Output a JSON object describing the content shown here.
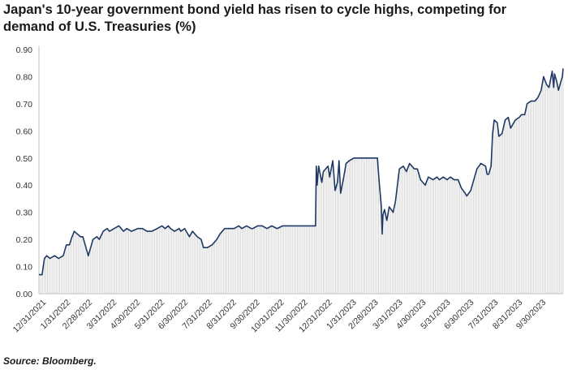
{
  "title": "Japan's 10-year government bond yield has risen to cycle highs, competing for demand of U.S. Treasuries (%)",
  "source": "Source: Bloomberg.",
  "colors": {
    "line": "#1f3864",
    "fill": "#d6d6d6",
    "axis": "#bfbfbf"
  },
  "chart_data": {
    "type": "area",
    "title": "Japan's 10-year government bond yield has risen to cycle highs, competing for demand of U.S. Treasuries (%)",
    "xlabel": "",
    "ylabel": "",
    "ylim": [
      0,
      0.9
    ],
    "grid": false,
    "y_ticks": [
      "0.00",
      "0.10",
      "0.20",
      "0.30",
      "0.40",
      "0.50",
      "0.60",
      "0.70",
      "0.80",
      "0.90"
    ],
    "x_ticks": [
      "12/31/2021",
      "1/31/2022",
      "2/28/2022",
      "3/31/2022",
      "4/30/2022",
      "5/31/2022",
      "6/30/2022",
      "7/31/2022",
      "8/31/2022",
      "9/30/2022",
      "10/31/2022",
      "11/30/2022",
      "12/31/2022",
      "1/31/2023",
      "2/28/2023",
      "3/31/2023",
      "4/30/2023",
      "5/31/2023",
      "6/30/2023",
      "7/31/2023",
      "8/31/2023",
      "9/30/2023"
    ],
    "series": [
      {
        "x": [
          "2021-12-31",
          "2022-01-04",
          "2022-01-07",
          "2022-01-10",
          "2022-01-14",
          "2022-01-20",
          "2022-01-25",
          "2022-01-31",
          "2022-02-04",
          "2022-02-08",
          "2022-02-10",
          "2022-02-14",
          "2022-02-18",
          "2022-02-22",
          "2022-02-25",
          "2022-02-28",
          "2022-03-04",
          "2022-03-08",
          "2022-03-10",
          "2022-03-15",
          "2022-03-18",
          "2022-03-23",
          "2022-03-28",
          "2022-03-31",
          "2022-04-06",
          "2022-04-12",
          "2022-04-18",
          "2022-04-22",
          "2022-04-28",
          "2022-05-06",
          "2022-05-12",
          "2022-05-18",
          "2022-05-24",
          "2022-05-31",
          "2022-06-06",
          "2022-06-10",
          "2022-06-14",
          "2022-06-17",
          "2022-06-22",
          "2022-06-28",
          "2022-06-30",
          "2022-07-05",
          "2022-07-11",
          "2022-07-15",
          "2022-07-21",
          "2022-07-26",
          "2022-07-29",
          "2022-08-03",
          "2022-08-09",
          "2022-08-15",
          "2022-08-19",
          "2022-08-25",
          "2022-08-31",
          "2022-09-06",
          "2022-09-12",
          "2022-09-16",
          "2022-09-22",
          "2022-09-28",
          "2022-09-30",
          "2022-10-06",
          "2022-10-12",
          "2022-10-18",
          "2022-10-24",
          "2022-10-31",
          "2022-11-07",
          "2022-11-14",
          "2022-11-21",
          "2022-11-28",
          "2022-12-02",
          "2022-12-08",
          "2022-12-14",
          "2022-12-19",
          "2022-12-20",
          "2022-12-21",
          "2022-12-23",
          "2022-12-27",
          "2022-12-29",
          "2023-01-04",
          "2023-01-06",
          "2023-01-10",
          "2023-01-13",
          "2023-01-16",
          "2023-01-18",
          "2023-01-20",
          "2023-01-24",
          "2023-01-27",
          "2023-01-31",
          "2023-02-06",
          "2023-02-12",
          "2023-02-18",
          "2023-02-24",
          "2023-02-28",
          "2023-03-03",
          "2023-03-08",
          "2023-03-10",
          "2023-03-13",
          "2023-03-14",
          "2023-03-15",
          "2023-03-17",
          "2023-03-20",
          "2023-03-23",
          "2023-03-28",
          "2023-03-31",
          "2023-04-05",
          "2023-04-10",
          "2023-04-14",
          "2023-04-18",
          "2023-04-24",
          "2023-04-28",
          "2023-05-02",
          "2023-05-08",
          "2023-05-12",
          "2023-05-18",
          "2023-05-23",
          "2023-05-26",
          "2023-05-31",
          "2023-06-05",
          "2023-06-09",
          "2023-06-14",
          "2023-06-19",
          "2023-06-23",
          "2023-06-28",
          "2023-06-30",
          "2023-07-05",
          "2023-07-10",
          "2023-07-13",
          "2023-07-18",
          "2023-07-24",
          "2023-07-26",
          "2023-07-28",
          "2023-07-31",
          "2023-08-02",
          "2023-08-04",
          "2023-08-08",
          "2023-08-10",
          "2023-08-14",
          "2023-08-18",
          "2023-08-22",
          "2023-08-25",
          "2023-08-29",
          "2023-08-31",
          "2023-09-05",
          "2023-09-08",
          "2023-09-12",
          "2023-09-15",
          "2023-09-20",
          "2023-09-25",
          "2023-09-28",
          "2023-09-30",
          "2023-10-03",
          "2023-10-06",
          "2023-10-10",
          "2023-10-13",
          "2023-10-17",
          "2023-10-19",
          "2023-10-20",
          "2023-10-23",
          "2023-10-25",
          "2023-10-27",
          "2023-10-30",
          "2023-10-31"
        ],
        "values": [
          0.07,
          0.07,
          0.13,
          0.14,
          0.13,
          0.14,
          0.13,
          0.14,
          0.18,
          0.18,
          0.2,
          0.23,
          0.22,
          0.21,
          0.21,
          0.18,
          0.14,
          0.18,
          0.2,
          0.21,
          0.2,
          0.23,
          0.24,
          0.23,
          0.24,
          0.25,
          0.23,
          0.24,
          0.23,
          0.24,
          0.24,
          0.23,
          0.23,
          0.24,
          0.25,
          0.24,
          0.25,
          0.24,
          0.23,
          0.24,
          0.23,
          0.24,
          0.21,
          0.23,
          0.21,
          0.2,
          0.17,
          0.17,
          0.18,
          0.2,
          0.22,
          0.24,
          0.24,
          0.24,
          0.25,
          0.24,
          0.25,
          0.24,
          0.24,
          0.25,
          0.25,
          0.24,
          0.25,
          0.24,
          0.25,
          0.25,
          0.25,
          0.25,
          0.25,
          0.25,
          0.25,
          0.25,
          0.47,
          0.4,
          0.47,
          0.41,
          0.45,
          0.47,
          0.43,
          0.49,
          0.38,
          0.41,
          0.49,
          0.37,
          0.43,
          0.48,
          0.49,
          0.5,
          0.5,
          0.5,
          0.5,
          0.5,
          0.5,
          0.5,
          0.42,
          0.32,
          0.22,
          0.29,
          0.31,
          0.27,
          0.32,
          0.3,
          0.34,
          0.46,
          0.47,
          0.45,
          0.48,
          0.46,
          0.46,
          0.42,
          0.4,
          0.43,
          0.42,
          0.43,
          0.42,
          0.43,
          0.42,
          0.43,
          0.42,
          0.42,
          0.39,
          0.37,
          0.36,
          0.38,
          0.43,
          0.46,
          0.48,
          0.47,
          0.44,
          0.44,
          0.47,
          0.59,
          0.64,
          0.63,
          0.58,
          0.59,
          0.64,
          0.65,
          0.61,
          0.63,
          0.64,
          0.65,
          0.66,
          0.66,
          0.7,
          0.71,
          0.71,
          0.72,
          0.73,
          0.75,
          0.8,
          0.77,
          0.76,
          0.82,
          0.76,
          0.81,
          0.78,
          0.75,
          0.77,
          0.8,
          0.83
        ]
      }
    ]
  }
}
